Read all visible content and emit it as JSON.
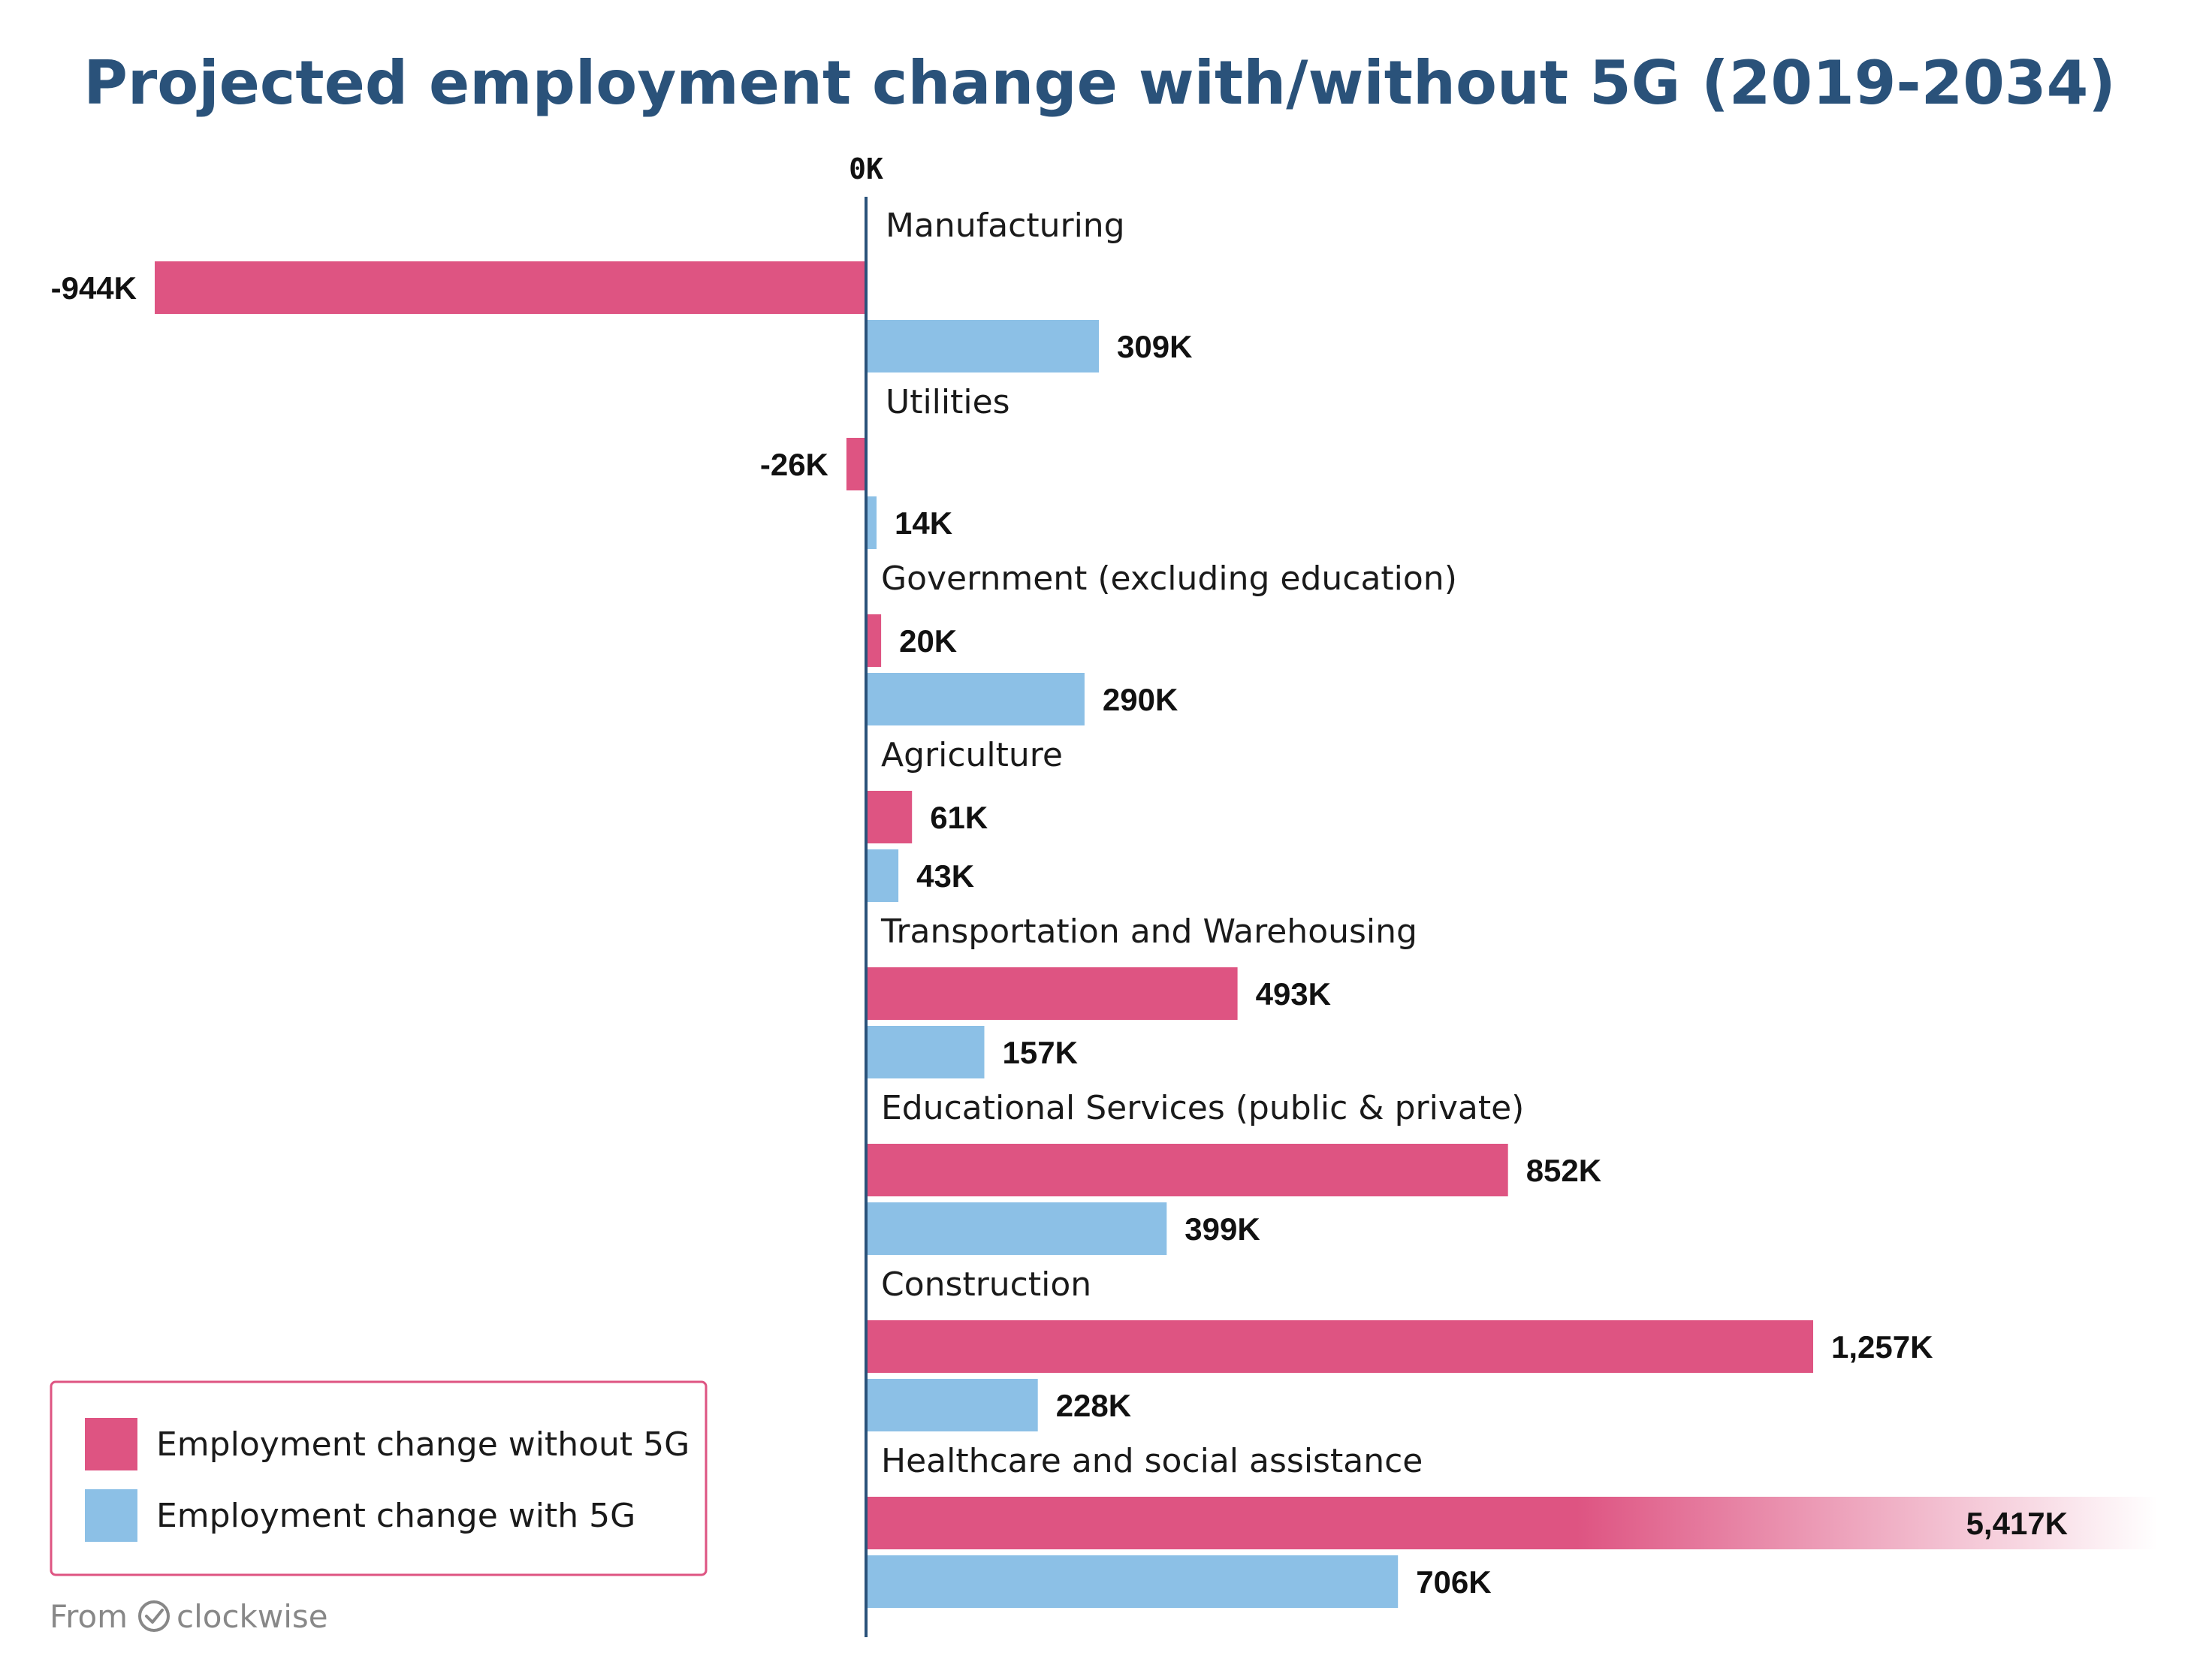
{
  "chart_data": {
    "type": "bar",
    "orientation": "horizontal",
    "title": "Projected employment change with/without 5G (2019-2034)",
    "zero_label": "0K",
    "unit": "K",
    "categories": [
      "Manufacturing",
      "Utilities",
      "Government (excluding education)",
      "Agriculture",
      "Transportation and Warehousing",
      "Educational Services (public & private)",
      "Construction",
      "Healthcare and social assistance"
    ],
    "series": [
      {
        "name": "Employment change without 5G",
        "color": "#de5482",
        "values": [
          -944,
          -26,
          20,
          61,
          493,
          852,
          1257,
          5417
        ],
        "labels": [
          "-944K",
          "-26K",
          "20K",
          "61K",
          "493K",
          "852K",
          "1,257K",
          "5,417K"
        ]
      },
      {
        "name": "Employment change with 5G",
        "color": "#8cc0e6",
        "values": [
          309,
          14,
          290,
          43,
          157,
          399,
          228,
          706
        ],
        "labels": [
          "309K",
          "14K",
          "290K",
          "43K",
          "157K",
          "399K",
          "228K",
          "706K"
        ]
      }
    ],
    "truncated_series_index": 0,
    "truncated_category_index": 7,
    "legend_position": "bottom-left",
    "axis_color": "#2a527a"
  },
  "source": {
    "prefix": "From",
    "brand": "clockwise"
  }
}
